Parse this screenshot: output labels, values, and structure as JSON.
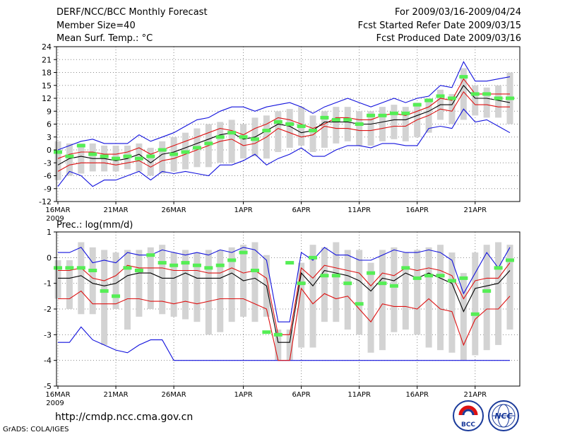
{
  "header": {
    "line1": "DERF/NCC/BCC Monthly Forecast",
    "line2": "Member Size=40",
    "line3": "Mean Surf. Temp.: °C",
    "right1": "For 2009/03/16-2009/04/24",
    "right2": "Fcst Started Refer Date 2009/03/15",
    "right3": "Fcst Produced Date 2009/03/16"
  },
  "footer": {
    "url": "http://cmdp.ncc.cma.gov.cn",
    "credit": "GrADS: COLA/IGES"
  },
  "logos": {
    "bcc_text": "BCC",
    "ncc_text": "NCC"
  },
  "colors": {
    "box": "#d3d3d3",
    "green": "#55ee55",
    "red": "#dd1111",
    "blue": "#1111dd",
    "mean": "#000000",
    "grid": "#888888"
  },
  "chart_data": [
    {
      "type": "line",
      "title": "Mean Surf. Temp.: °C",
      "x_tick_labels": [
        "16MAR",
        "21MAR",
        "26MAR",
        "1APR",
        "6APR",
        "11APR",
        "16APR",
        "21APR"
      ],
      "x_tick_days": [
        1,
        6,
        11,
        17,
        22,
        27,
        32,
        37
      ],
      "x_year_label": "2009",
      "days": [
        1,
        2,
        3,
        4,
        5,
        6,
        7,
        8,
        9,
        10,
        11,
        12,
        13,
        14,
        15,
        16,
        17,
        18,
        19,
        20,
        21,
        22,
        23,
        24,
        25,
        26,
        27,
        28,
        29,
        30,
        31,
        32,
        33,
        34,
        35,
        36,
        37,
        38,
        39,
        40
      ],
      "ylim": [
        -12,
        24
      ],
      "y_ticks": [
        -12,
        -9,
        -6,
        -3,
        0,
        3,
        6,
        9,
        12,
        15,
        18,
        21,
        24
      ],
      "series": [
        {
          "name": "box_top",
          "values": [
            2,
            1.5,
            1.5,
            1.5,
            1,
            1,
            1,
            1.5,
            0.5,
            2,
            3,
            4,
            5,
            6,
            6.5,
            7,
            6,
            7.5,
            8,
            9,
            9.5,
            10,
            8,
            9,
            10,
            10,
            9,
            9,
            10,
            10.5,
            10,
            11,
            12,
            14,
            13,
            19,
            15,
            14.5,
            15,
            18
          ]
        },
        {
          "name": "box_bottom",
          "values": [
            -7,
            -6,
            -5.5,
            -5,
            -5,
            -5,
            -4.5,
            -5,
            -6,
            -5.5,
            -5,
            -4.5,
            -4,
            -4,
            -3,
            -3,
            -2,
            -1.5,
            -2,
            -0.5,
            0.5,
            1,
            -0.5,
            0.5,
            1.5,
            2,
            1,
            1,
            2,
            2.5,
            2,
            3,
            4,
            7,
            6,
            7,
            8,
            7.5,
            7.5,
            6
          ]
        },
        {
          "name": "upper_blue",
          "values": [
            0,
            1,
            2,
            2.5,
            1.5,
            1.5,
            1.5,
            3.5,
            2,
            3,
            4,
            5.5,
            7,
            7.5,
            9,
            10,
            10,
            9,
            10,
            10.5,
            11,
            10,
            8.5,
            10,
            11,
            12,
            11,
            10,
            11,
            12,
            11,
            12,
            12.5,
            15,
            14.5,
            20.5,
            16,
            16,
            16.5,
            17
          ]
        },
        {
          "name": "upper_red",
          "values": [
            -2,
            -1,
            -0.5,
            -0.5,
            -1,
            -1,
            -0.5,
            0.5,
            -1,
            0,
            1,
            2,
            3,
            4,
            5,
            4.5,
            3.5,
            5,
            6,
            7.5,
            7,
            6,
            5,
            6,
            7.5,
            7.5,
            7,
            7,
            8,
            8.5,
            8,
            9,
            10,
            12,
            11.5,
            16.5,
            13,
            13,
            13,
            13
          ]
        },
        {
          "name": "mean",
          "values": [
            -3.5,
            -2,
            -1.5,
            -2,
            -2,
            -2.5,
            -2,
            -1,
            -3,
            -1,
            -0.5,
            0.5,
            1.5,
            2.5,
            3.5,
            4,
            2.5,
            3,
            4.5,
            6,
            5.5,
            4,
            4.5,
            6.5,
            6.5,
            6.5,
            6,
            6,
            6.5,
            7,
            7,
            8,
            9,
            10.5,
            10.5,
            15,
            12,
            12,
            11.5,
            11
          ]
        },
        {
          "name": "lower_red",
          "values": [
            -5,
            -3.5,
            -3,
            -3,
            -3,
            -3.5,
            -3,
            -2.5,
            -4,
            -2.5,
            -2,
            -1,
            0,
            1,
            2,
            2.5,
            1,
            1.5,
            3,
            5,
            4,
            3,
            3.5,
            5.5,
            5,
            5,
            4.5,
            4.5,
            5,
            5.5,
            5.5,
            7,
            8,
            9.5,
            9,
            13.5,
            10.5,
            10.5,
            10,
            10
          ]
        },
        {
          "name": "lower_blue",
          "values": [
            -8.5,
            -5,
            -6,
            -8.5,
            -7,
            -7,
            -6,
            -5,
            -7,
            -5,
            -5.5,
            -5,
            -5.5,
            -6,
            -3.5,
            -3.5,
            -2.5,
            -1,
            -3.5,
            -2,
            -1,
            0.5,
            -1.5,
            -1.5,
            0,
            1,
            1,
            0.5,
            1.5,
            1.5,
            1,
            1,
            5,
            5.5,
            5,
            9.5,
            6.5,
            7,
            5.5,
            4
          ]
        },
        {
          "name": "green_marker",
          "values": [
            -0.5,
            -1.5,
            1,
            -1,
            -1.5,
            -2,
            -1.5,
            -2,
            -1.5,
            0,
            -1,
            -0.5,
            0.5,
            1.5,
            3,
            4,
            3,
            2.5,
            4.5,
            6.5,
            6,
            5.5,
            4.5,
            7.5,
            7,
            7,
            6,
            8,
            8,
            8.5,
            8.5,
            10.5,
            11.5,
            12.5,
            12,
            17,
            13,
            13,
            12,
            12
          ]
        }
      ]
    },
    {
      "type": "line",
      "title": "Prec.: log(mm/d)",
      "x_tick_labels": [
        "16MAR",
        "21MAR",
        "26MAR",
        "1APR",
        "6APR",
        "11APR",
        "16APR",
        "21APR"
      ],
      "x_tick_days": [
        1,
        6,
        11,
        17,
        22,
        27,
        32,
        37
      ],
      "x_year_label": "2009",
      "days": [
        1,
        2,
        3,
        4,
        5,
        6,
        7,
        8,
        9,
        10,
        11,
        12,
        13,
        14,
        15,
        16,
        17,
        18,
        19,
        20,
        21,
        22,
        23,
        24,
        25,
        26,
        27,
        28,
        29,
        30,
        31,
        32,
        33,
        34,
        35,
        36,
        37,
        38,
        39,
        40
      ],
      "ylim": [
        -5,
        1
      ],
      "y_ticks": [
        -5,
        -4,
        -3,
        -2,
        -1,
        0,
        1
      ],
      "series": [
        {
          "name": "box_top",
          "values": [
            -0.1,
            -0.1,
            0.6,
            0.4,
            0.3,
            0.2,
            0.3,
            0.3,
            0.4,
            0.5,
            0.2,
            0.3,
            0.2,
            0.3,
            0.3,
            0.4,
            0.5,
            0.6,
            0.1,
            -2.8,
            -2.8,
            -0.2,
            0.5,
            0.4,
            0.6,
            0.3,
            0.3,
            -0.2,
            0.3,
            0.4,
            0.2,
            0.3,
            0.4,
            0.5,
            0.2,
            -0.6,
            0.2,
            0.5,
            0.6,
            0.5
          ]
        },
        {
          "name": "box_bottom",
          "values": [
            -1.6,
            -2.0,
            -2.2,
            -2.2,
            -3.4,
            -2.0,
            -2.8,
            -2.3,
            -2.0,
            -2.2,
            -2.3,
            -2.4,
            -2.5,
            -3.0,
            -2.9,
            -2.5,
            -2.3,
            -2.5,
            -2.3,
            -4.0,
            -4.0,
            -3.5,
            -3.5,
            -2.5,
            -2.5,
            -2.8,
            -3.0,
            -3.7,
            -3.6,
            -2.9,
            -2.8,
            -3.0,
            -3.5,
            -3.6,
            -3.7,
            -4.0,
            -3.8,
            -3.6,
            -3.4,
            -2.8
          ]
        },
        {
          "name": "upper_blue",
          "values": [
            0.2,
            0.2,
            0.4,
            -0.2,
            -0.1,
            -0.2,
            0.2,
            0.1,
            0.1,
            0.3,
            0.2,
            0.1,
            0.2,
            0.1,
            0.3,
            0.2,
            0.4,
            0.3,
            -0.1,
            -2.5,
            -2.5,
            0.2,
            -0.1,
            0.4,
            0.1,
            0.1,
            -0.1,
            -0.1,
            0.1,
            0.3,
            0.2,
            0.2,
            0.3,
            0.2,
            -0.1,
            -1.4,
            -0.6,
            0.2,
            -0.4,
            0.4
          ]
        },
        {
          "name": "upper_red",
          "values": [
            -0.5,
            -0.5,
            -0.4,
            -0.8,
            -0.9,
            -0.7,
            -0.3,
            -0.4,
            -0.4,
            -0.4,
            -0.5,
            -0.5,
            -0.5,
            -0.6,
            -0.6,
            -0.4,
            -0.6,
            -0.5,
            -0.8,
            -3.0,
            -3.0,
            -0.4,
            -0.8,
            -0.3,
            -0.4,
            -0.5,
            -0.6,
            -1.1,
            -0.6,
            -0.7,
            -0.4,
            -0.5,
            -0.4,
            -0.5,
            -0.7,
            -1.6,
            -0.9,
            -0.8,
            -0.8,
            -0.2
          ]
        },
        {
          "name": "mean",
          "values": [
            -0.8,
            -0.8,
            -0.7,
            -1.0,
            -1.1,
            -1.0,
            -0.7,
            -0.6,
            -0.6,
            -0.8,
            -0.8,
            -0.6,
            -0.8,
            -0.8,
            -0.8,
            -0.6,
            -0.9,
            -0.8,
            -1.1,
            -3.3,
            -3.3,
            -0.6,
            -1.1,
            -0.5,
            -0.6,
            -0.7,
            -0.9,
            -1.3,
            -0.8,
            -0.9,
            -0.6,
            -0.8,
            -0.6,
            -0.8,
            -1.0,
            -2.1,
            -1.2,
            -1.1,
            -1.0,
            -0.5
          ]
        },
        {
          "name": "lower_red",
          "values": [
            -1.6,
            -1.6,
            -1.3,
            -1.8,
            -1.8,
            -1.8,
            -1.6,
            -1.6,
            -1.7,
            -1.7,
            -1.8,
            -1.7,
            -1.8,
            -1.7,
            -1.6,
            -1.6,
            -1.6,
            -1.8,
            -2.0,
            -4.0,
            -4.0,
            -1.2,
            -1.8,
            -1.4,
            -1.6,
            -1.5,
            -2.0,
            -2.5,
            -1.8,
            -1.9,
            -1.9,
            -2.0,
            -1.6,
            -2.0,
            -2.1,
            -3.4,
            -2.4,
            -2.0,
            -2.0,
            -1.5
          ]
        },
        {
          "name": "lower_blue",
          "values": [
            -3.3,
            -3.3,
            -2.7,
            -3.2,
            -3.4,
            -3.6,
            -3.7,
            -3.4,
            -3.2,
            -3.2,
            -4.0,
            -4.0,
            -4.0,
            -4.0,
            -4.0,
            -4.0,
            -4.0,
            -4.0,
            -4.0,
            -4.0,
            -4.0,
            -4.0,
            -4.0,
            -4.0,
            -4.0,
            -4.0,
            -4.0,
            -4.0,
            -4.0,
            -4.0,
            -4.0,
            -4.0,
            -4.0,
            -4.0,
            -4.0,
            -4.0,
            -4.0,
            -4.0,
            -4.0,
            -4.0
          ]
        },
        {
          "name": "green_marker",
          "values": [
            -0.4,
            -0.4,
            -0.4,
            -0.5,
            -1.3,
            -1.5,
            -0.4,
            -0.5,
            0.1,
            -0.2,
            -0.3,
            -0.2,
            -0.3,
            -0.4,
            -0.3,
            -0.1,
            0.2,
            -0.5,
            -2.9,
            -3.0,
            -0.2,
            -1.0,
            0.0,
            -0.7,
            -0.7,
            -1.0,
            -1.8,
            -0.6,
            -1.0,
            -1.1,
            -0.4,
            -0.8,
            -0.7,
            -0.7,
            -0.9,
            -0.8,
            -2.2,
            -1.3,
            -0.4,
            -0.1
          ]
        }
      ]
    }
  ]
}
